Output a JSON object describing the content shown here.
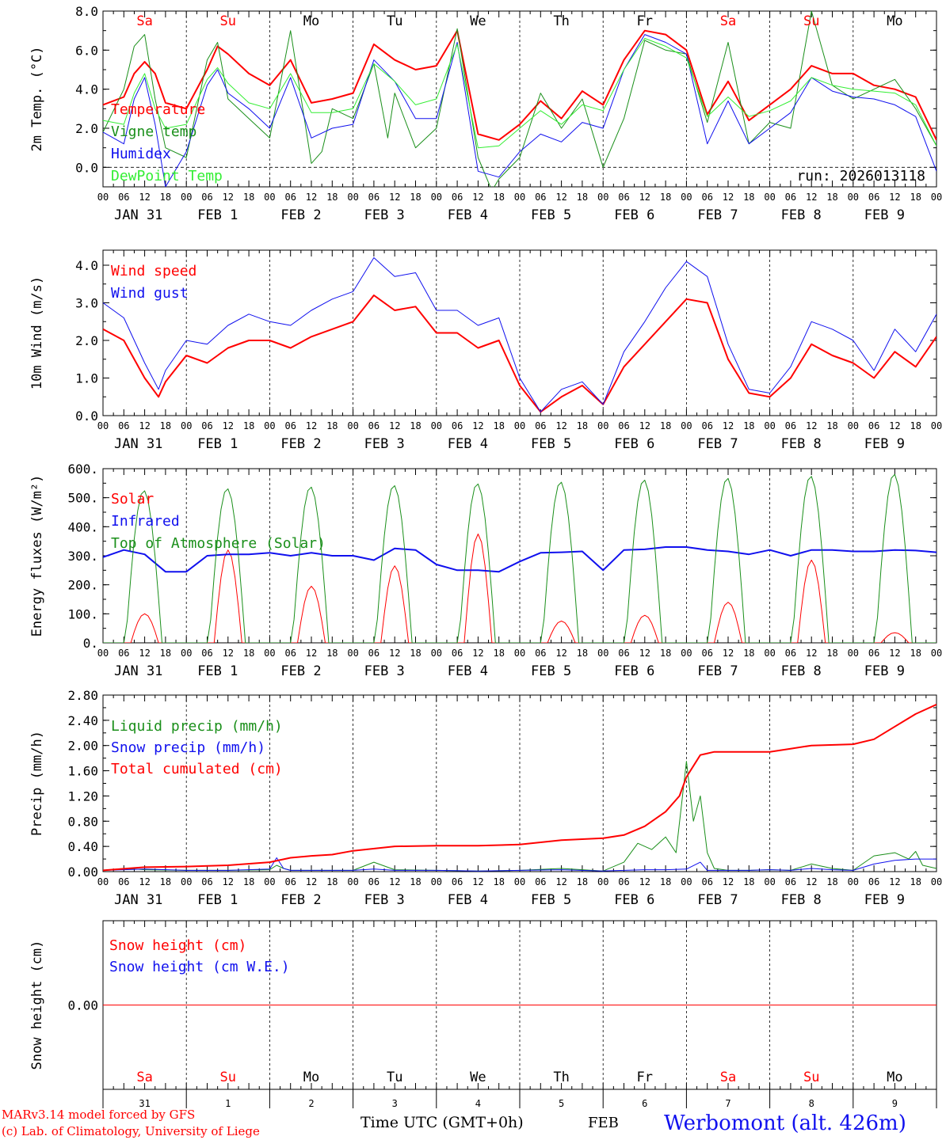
{
  "colors": {
    "red": "#ff0000",
    "green": "#1a8f1a",
    "blue": "#1010ee",
    "lightgreen": "#33ee33",
    "black": "#000000"
  },
  "days": {
    "weekdays": [
      "Sa",
      "Su",
      "Mo",
      "Tu",
      "We",
      "Th",
      "Fr",
      "Sa",
      "Su",
      "Mo"
    ],
    "weekend": [
      true,
      true,
      false,
      false,
      false,
      false,
      false,
      true,
      true,
      false
    ],
    "date_labels": [
      "JAN 31",
      "FEB  1",
      "FEB  2",
      "FEB  3",
      "FEB  4",
      "FEB  5",
      "FEB  6",
      "FEB  7",
      "FEB  8",
      "FEB  9"
    ],
    "hour_ticks": [
      "00",
      "06",
      "12",
      "18"
    ],
    "bottom_numbers": [
      "31",
      "1",
      "2",
      "3",
      "4",
      "5",
      "6",
      "7",
      "8",
      "9"
    ]
  },
  "footer": {
    "model": "MARv3.14 model forced by GFS",
    "credit": "(c) Lab. of Climatology, University of Liege",
    "axis_title": "Time UTC (GMT+0h)",
    "month": "FEB",
    "station": "Werbomont (alt. 426m)"
  },
  "chart_data": [
    {
      "type": "line",
      "title": "",
      "ylabel": "2m Temp. (°C)",
      "ylim": [
        -1,
        8
      ],
      "yticks": [
        0,
        2,
        4,
        6,
        8
      ],
      "ytick_labels": [
        "0.0",
        "2.0",
        "4.0",
        "6.0",
        "8.0"
      ],
      "zero_line": true,
      "run_label": "run: 2026013118",
      "x_unit": "hours from Jan 31 00 UTC",
      "series": [
        {
          "name": "Temperature",
          "color": "red",
          "width": 2,
          "x": [
            0,
            6,
            9,
            12,
            15,
            18,
            24,
            30,
            33,
            36,
            42,
            48,
            54,
            60,
            66,
            72,
            78,
            84,
            90,
            96,
            102,
            108,
            114,
            120,
            126,
            132,
            138,
            144,
            150,
            156,
            162,
            168,
            174,
            180,
            186,
            192,
            198,
            204,
            210,
            216,
            222,
            228,
            234,
            240
          ],
          "y": [
            3.2,
            3.6,
            4.8,
            5.4,
            4.8,
            3.3,
            3.0,
            5.0,
            6.2,
            5.8,
            4.8,
            4.2,
            5.5,
            3.3,
            3.5,
            3.8,
            6.3,
            5.5,
            5.0,
            5.2,
            7.0,
            1.7,
            1.4,
            2.2,
            3.4,
            2.5,
            3.9,
            3.2,
            5.5,
            7.0,
            6.8,
            6.0,
            2.7,
            4.4,
            2.4,
            3.2,
            4.0,
            5.2,
            4.8,
            4.8,
            4.2,
            4.0,
            3.6,
            1.4
          ]
        },
        {
          "name": "Vigne temp",
          "color": "green",
          "width": 1,
          "x": [
            0,
            6,
            9,
            12,
            15,
            18,
            24,
            30,
            33,
            36,
            42,
            48,
            54,
            60,
            63,
            66,
            72,
            78,
            82,
            84,
            90,
            96,
            102,
            108,
            112,
            114,
            120,
            126,
            132,
            138,
            144,
            150,
            156,
            162,
            168,
            174,
            180,
            186,
            192,
            198,
            204,
            210,
            216,
            222,
            228,
            234,
            240
          ],
          "y": [
            1.8,
            4.0,
            6.2,
            6.8,
            3.5,
            1.0,
            0.5,
            5.5,
            6.4,
            3.5,
            2.5,
            1.5,
            7.0,
            0.2,
            0.8,
            3.0,
            2.5,
            5.3,
            1.5,
            3.8,
            1.0,
            2.0,
            7.1,
            0.5,
            -1.2,
            -0.6,
            0.5,
            3.8,
            2.0,
            3.5,
            0.0,
            2.5,
            6.5,
            6.0,
            5.8,
            2.3,
            6.4,
            1.2,
            2.3,
            2.0,
            8.0,
            4.2,
            3.5,
            4.0,
            4.5,
            3.0,
            1.1
          ]
        },
        {
          "name": "Humidex",
          "color": "blue",
          "width": 1,
          "x": [
            0,
            6,
            9,
            12,
            15,
            18,
            24,
            30,
            33,
            36,
            42,
            48,
            54,
            60,
            66,
            72,
            78,
            84,
            90,
            96,
            102,
            108,
            114,
            120,
            126,
            132,
            138,
            144,
            150,
            156,
            162,
            168,
            174,
            180,
            186,
            192,
            198,
            204,
            210,
            216,
            222,
            228,
            234,
            240
          ],
          "y": [
            1.8,
            1.2,
            3.5,
            4.6,
            2.2,
            -1.0,
            0.8,
            4.2,
            5.0,
            3.8,
            3.0,
            2.0,
            4.6,
            1.5,
            2.0,
            2.2,
            5.5,
            4.4,
            2.5,
            2.5,
            6.4,
            -0.2,
            -0.5,
            0.8,
            1.7,
            1.3,
            2.3,
            2.0,
            5.0,
            6.8,
            6.4,
            5.8,
            1.2,
            3.4,
            1.2,
            2.0,
            2.8,
            4.6,
            3.9,
            3.6,
            3.5,
            3.2,
            2.6,
            -0.2
          ]
        },
        {
          "name": "DewPoint Temp",
          "color": "lightgreen",
          "width": 1,
          "x": [
            0,
            6,
            9,
            12,
            15,
            18,
            24,
            30,
            33,
            36,
            42,
            48,
            54,
            60,
            66,
            72,
            78,
            84,
            90,
            96,
            102,
            108,
            114,
            120,
            126,
            132,
            138,
            144,
            150,
            156,
            162,
            168,
            174,
            180,
            186,
            192,
            198,
            204,
            210,
            216,
            222,
            228,
            234,
            240
          ],
          "y": [
            2.4,
            2.2,
            3.8,
            4.8,
            3.0,
            2.0,
            2.2,
            4.5,
            5.1,
            4.3,
            3.3,
            3.0,
            4.8,
            2.8,
            2.8,
            3.0,
            5.3,
            4.4,
            3.2,
            3.5,
            6.3,
            1.0,
            1.1,
            2.0,
            2.9,
            2.2,
            3.2,
            2.9,
            5.0,
            6.6,
            6.2,
            5.6,
            2.6,
            3.6,
            2.6,
            2.9,
            3.4,
            4.6,
            4.2,
            4.0,
            3.9,
            3.8,
            3.2,
            1.1
          ]
        }
      ]
    },
    {
      "type": "line",
      "title": "",
      "ylabel": "10m Wind (m/s)",
      "ylim": [
        0,
        4.4
      ],
      "yticks": [
        0,
        1,
        2,
        3,
        4
      ],
      "ytick_labels": [
        "0.0",
        "1.0",
        "2.0",
        "3.0",
        "4.0"
      ],
      "series": [
        {
          "name": "Wind speed",
          "color": "red",
          "width": 2,
          "x": [
            0,
            6,
            12,
            16,
            18,
            24,
            30,
            36,
            42,
            48,
            54,
            60,
            66,
            72,
            78,
            84,
            90,
            96,
            102,
            108,
            114,
            120,
            126,
            132,
            138,
            144,
            150,
            156,
            162,
            168,
            174,
            180,
            186,
            192,
            198,
            204,
            210,
            216,
            222,
            228,
            234,
            240
          ],
          "y": [
            2.3,
            2.0,
            1.0,
            0.5,
            0.9,
            1.6,
            1.4,
            1.8,
            2.0,
            2.0,
            1.8,
            2.1,
            2.3,
            2.5,
            3.2,
            2.8,
            2.9,
            2.2,
            2.2,
            1.8,
            2.0,
            0.8,
            0.1,
            0.5,
            0.8,
            0.3,
            1.3,
            1.9,
            2.5,
            3.1,
            3.0,
            1.5,
            0.6,
            0.5,
            1.0,
            1.9,
            1.6,
            1.4,
            1.0,
            1.7,
            1.3,
            2.1
          ]
        },
        {
          "name": "Wind gust",
          "color": "blue",
          "width": 1,
          "x": [
            0,
            6,
            12,
            16,
            18,
            24,
            30,
            36,
            42,
            48,
            54,
            60,
            66,
            72,
            78,
            84,
            90,
            96,
            102,
            108,
            114,
            120,
            126,
            132,
            138,
            144,
            150,
            156,
            162,
            168,
            174,
            180,
            186,
            192,
            198,
            204,
            210,
            216,
            222,
            228,
            234,
            240
          ],
          "y": [
            3.0,
            2.6,
            1.4,
            0.7,
            1.2,
            2.0,
            1.9,
            2.4,
            2.7,
            2.5,
            2.4,
            2.8,
            3.1,
            3.3,
            4.2,
            3.7,
            3.8,
            2.8,
            2.8,
            2.4,
            2.6,
            1.0,
            0.1,
            0.7,
            0.9,
            0.3,
            1.7,
            2.5,
            3.4,
            4.1,
            3.7,
            1.9,
            0.7,
            0.6,
            1.3,
            2.5,
            2.3,
            2.0,
            1.2,
            2.3,
            1.7,
            2.7
          ]
        }
      ]
    },
    {
      "type": "line",
      "title": "",
      "ylabel": "Energy fluxes (W/m²)",
      "ylim": [
        0,
        600
      ],
      "yticks": [
        0,
        100,
        200,
        300,
        400,
        500,
        600
      ],
      "ytick_labels": [
        "0.",
        "100.",
        "200.",
        "300.",
        "400.",
        "500.",
        "600."
      ],
      "series": [
        {
          "name": "Solar",
          "color": "red",
          "width": 1,
          "type": "daily_peak",
          "peak_values": [
            100,
            320,
            195,
            265,
            375,
            75,
            95,
            140,
            285,
            35
          ]
        },
        {
          "name": "Infrared",
          "color": "blue",
          "width": 2,
          "x": [
            0,
            6,
            12,
            18,
            24,
            30,
            36,
            42,
            48,
            54,
            60,
            66,
            72,
            78,
            84,
            90,
            96,
            102,
            108,
            114,
            120,
            126,
            132,
            138,
            144,
            150,
            156,
            162,
            168,
            174,
            180,
            186,
            192,
            198,
            204,
            210,
            216,
            222,
            228,
            234,
            240
          ],
          "y": [
            295,
            320,
            305,
            245,
            245,
            300,
            305,
            305,
            310,
            300,
            310,
            300,
            300,
            285,
            325,
            320,
            270,
            250,
            250,
            245,
            280,
            310,
            312,
            315,
            250,
            320,
            322,
            330,
            330,
            320,
            315,
            305,
            320,
            300,
            320,
            320,
            315,
            315,
            320,
            318,
            312
          ]
        },
        {
          "name": "Top of Atmosphere (Solar)",
          "color": "green",
          "width": 1,
          "type": "daily_peak",
          "peak_values": [
            525,
            532,
            538,
            543,
            549,
            555,
            562,
            568,
            575,
            582
          ]
        }
      ]
    },
    {
      "type": "line",
      "title": "",
      "ylabel": "Precip (mm/h)",
      "ylim": [
        0,
        2.8
      ],
      "yticks": [
        0,
        0.4,
        0.8,
        1.2,
        1.6,
        2.0,
        2.4,
        2.8
      ],
      "ytick_labels": [
        "0.00",
        "0.40",
        "0.80",
        "1.20",
        "1.60",
        "2.00",
        "2.40",
        "2.80"
      ],
      "series": [
        {
          "name": "Liquid precip (mm/h)",
          "color": "green",
          "width": 1,
          "x": [
            0,
            6,
            12,
            24,
            36,
            48,
            50,
            52,
            54,
            60,
            72,
            78,
            84,
            96,
            108,
            120,
            132,
            144,
            150,
            154,
            158,
            162,
            165,
            168,
            170,
            172,
            174,
            176,
            180,
            186,
            192,
            198,
            204,
            210,
            216,
            222,
            228,
            232,
            234,
            236,
            240
          ],
          "y": [
            0.02,
            0.05,
            0.03,
            0.02,
            0.02,
            0.03,
            0.1,
            0.05,
            0.02,
            0.02,
            0.02,
            0.15,
            0.03,
            0.02,
            0.01,
            0.02,
            0.05,
            0.01,
            0.15,
            0.45,
            0.35,
            0.55,
            0.3,
            1.75,
            0.8,
            1.2,
            0.3,
            0.05,
            0.02,
            0.02,
            0.03,
            0.02,
            0.12,
            0.05,
            0.02,
            0.25,
            0.3,
            0.2,
            0.32,
            0.1,
            0.05
          ]
        },
        {
          "name": "Snow precip (mm/h)",
          "color": "blue",
          "width": 1,
          "x": [
            0,
            6,
            12,
            24,
            36,
            48,
            50,
            52,
            54,
            60,
            72,
            78,
            84,
            96,
            108,
            120,
            132,
            144,
            150,
            156,
            162,
            168,
            172,
            174,
            180,
            186,
            192,
            198,
            204,
            210,
            216,
            222,
            228,
            234,
            240
          ],
          "y": [
            0.02,
            0.03,
            0.04,
            0.02,
            0.02,
            0.04,
            0.22,
            0.05,
            0.02,
            0.02,
            0.02,
            0.04,
            0.02,
            0.02,
            0.01,
            0.02,
            0.03,
            0.01,
            0.02,
            0.03,
            0.03,
            0.04,
            0.15,
            0.02,
            0.02,
            0.02,
            0.03,
            0.02,
            0.05,
            0.03,
            0.02,
            0.12,
            0.18,
            0.2,
            0.2
          ]
        },
        {
          "name": "Total cumulated (cm)",
          "color": "red",
          "width": 2,
          "x": [
            0,
            12,
            24,
            36,
            48,
            54,
            60,
            66,
            72,
            84,
            96,
            108,
            120,
            132,
            144,
            150,
            156,
            162,
            166,
            168,
            172,
            176,
            180,
            192,
            198,
            204,
            216,
            222,
            228,
            234,
            240
          ],
          "y": [
            0.02,
            0.07,
            0.08,
            0.1,
            0.15,
            0.22,
            0.25,
            0.27,
            0.33,
            0.4,
            0.41,
            0.41,
            0.43,
            0.5,
            0.53,
            0.58,
            0.72,
            0.95,
            1.2,
            1.5,
            1.85,
            1.9,
            1.9,
            1.9,
            1.95,
            2.0,
            2.02,
            2.1,
            2.3,
            2.5,
            2.65
          ]
        }
      ]
    },
    {
      "type": "line",
      "title": "",
      "ylabel": "Snow height (cm)",
      "ylim": [
        -1,
        1
      ],
      "yticks": [
        0
      ],
      "ytick_labels": [
        "0.00"
      ],
      "series": [
        {
          "name": "Snow height (cm)",
          "color": "red",
          "width": 1,
          "x": [
            0,
            240
          ],
          "y": [
            0,
            0
          ]
        },
        {
          "name": "Snow height (cm W.E.)",
          "color": "blue",
          "width": 1,
          "x": [
            0,
            240
          ],
          "y": [
            0,
            0
          ],
          "legend_only": true
        }
      ]
    }
  ]
}
